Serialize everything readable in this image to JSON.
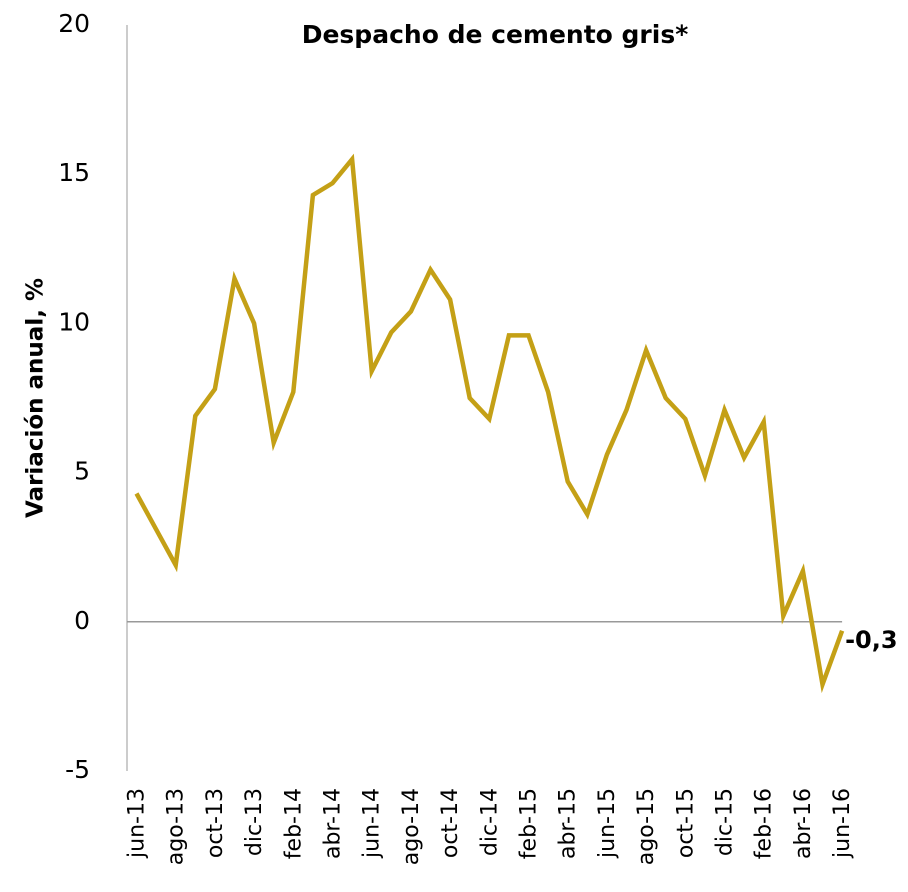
{
  "chart_data": {
    "type": "line",
    "title": "Despacho de cemento gris*",
    "y_label": "Variación anual, %",
    "categories": [
      "jun-13",
      null,
      "ago-13",
      null,
      "oct-13",
      null,
      "dic-13",
      null,
      "feb-14",
      null,
      "abr-14",
      null,
      "jun-14",
      null,
      "ago-14",
      null,
      "oct-14",
      null,
      "dic-14",
      null,
      "feb-15",
      null,
      "abr-15",
      null,
      "jun-15",
      null,
      "ago-15",
      null,
      "oct-15",
      null,
      "dic-15",
      null,
      "feb-16",
      null,
      "abr-16",
      null,
      "jun-16"
    ],
    "series": [
      {
        "name": "Despacho de cemento gris",
        "color": "#c4a016",
        "values": [
          4.3,
          3.1,
          1.9,
          6.9,
          7.8,
          11.5,
          10.0,
          6.0,
          7.7,
          14.3,
          14.7,
          15.5,
          8.4,
          9.7,
          10.4,
          11.8,
          10.8,
          7.5,
          6.8,
          9.6,
          9.6,
          7.7,
          4.7,
          3.6,
          5.6,
          7.1,
          9.1,
          7.5,
          6.8,
          4.9,
          7.1,
          5.5,
          6.7,
          0.2,
          1.7,
          -2.1,
          -0.3
        ],
        "value_labels": [
          null,
          null,
          null,
          null,
          null,
          null,
          null,
          null,
          null,
          null,
          null,
          null,
          null,
          null,
          null,
          null,
          null,
          null,
          null,
          null,
          null,
          null,
          null,
          null,
          null,
          null,
          null,
          null,
          null,
          null,
          null,
          null,
          null,
          null,
          null,
          null,
          "-0,3"
        ]
      }
    ],
    "ylim": [
      -5,
      20
    ],
    "yticks": [
      -5,
      0,
      5,
      10,
      15,
      20
    ],
    "grid": false
  }
}
